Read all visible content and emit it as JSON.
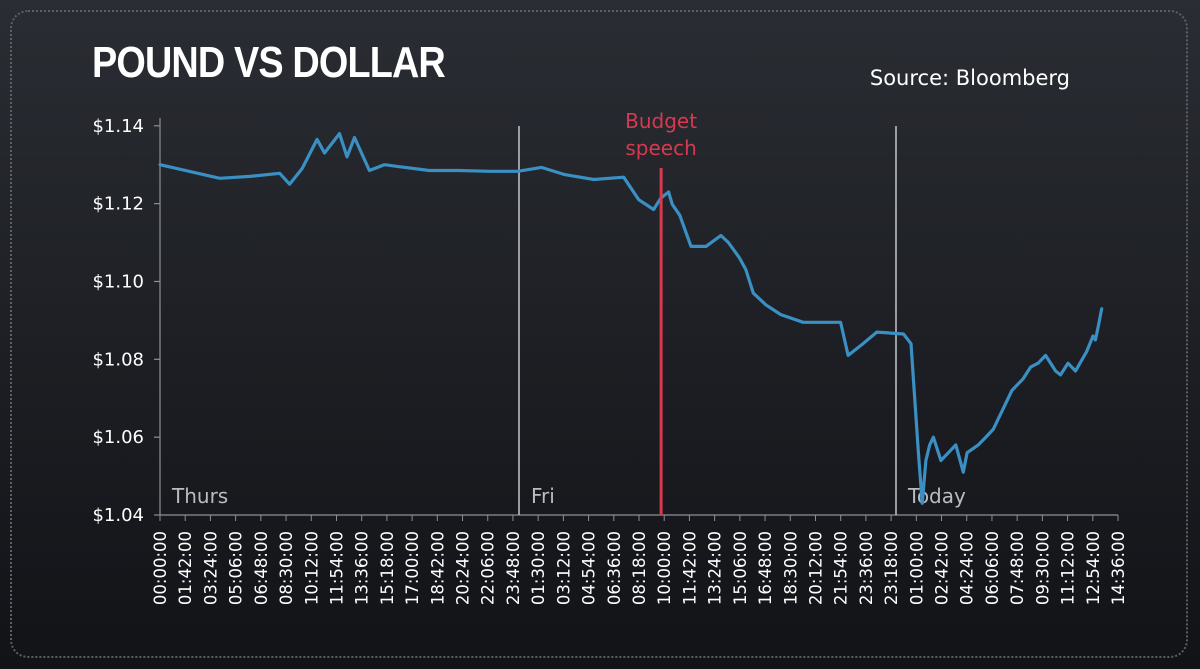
{
  "page": {
    "title": "POUND VS DOLLAR",
    "source": "Source: Bloomberg"
  },
  "chart_data": {
    "type": "line",
    "title": "POUND VS DOLLAR",
    "xlabel": "",
    "ylabel": "",
    "x": [
      "00:00:00",
      "04:00:00",
      "06:00:00",
      "08:00:00",
      "08:40:00",
      "09:30:00",
      "10:30:00",
      "11:00:00",
      "12:00:00",
      "12:30:00",
      "13:00:00",
      "14:00:00",
      "15:00:00",
      "16:00:00",
      "18:00:00",
      "20:00:00",
      "22:00:00",
      "23:55:00",
      "01:30:00",
      "03:00:00",
      "05:00:00",
      "07:00:00",
      "08:00:00",
      "09:00:00",
      "09:30:00",
      "10:00:00",
      "10:15:00",
      "10:45:00",
      "11:30:00",
      "12:30:00",
      "13:30:00",
      "14:00:00",
      "14:45:00",
      "15:10:00",
      "15:40:00",
      "16:30:00",
      "17:30:00",
      "19:00:00",
      "20:30:00",
      "21:30:00",
      "22:00:00",
      "23:00:00",
      "23:55:00",
      "00:30:00",
      "01:00:00",
      "01:30:00",
      "01:45:00",
      "02:00:00",
      "02:15:00",
      "02:30:00",
      "03:00:00",
      "03:30:00",
      "04:00:00",
      "04:30:00",
      "04:45:00",
      "05:30:00",
      "06:00:00",
      "06:30:00",
      "07:00:00",
      "07:45:00",
      "08:30:00",
      "09:00:00",
      "09:30:00",
      "10:00:00",
      "10:40:00",
      "11:00:00",
      "11:30:00",
      "12:00:00",
      "12:45:00",
      "13:10:00",
      "13:20:00",
      "13:30:00",
      "13:45:00"
    ],
    "days": [
      "Thurs",
      "Thurs",
      "Thurs",
      "Thurs",
      "Thurs",
      "Thurs",
      "Thurs",
      "Thurs",
      "Thurs",
      "Thurs",
      "Thurs",
      "Thurs",
      "Thurs",
      "Thurs",
      "Thurs",
      "Thurs",
      "Thurs",
      "Thurs",
      "Fri",
      "Fri",
      "Fri",
      "Fri",
      "Fri",
      "Fri",
      "Fri",
      "Fri",
      "Fri",
      "Fri",
      "Fri",
      "Fri",
      "Fri",
      "Fri",
      "Fri",
      "Fri",
      "Fri",
      "Fri",
      "Fri",
      "Fri",
      "Fri",
      "Fri",
      "Fri",
      "Fri",
      "Fri",
      "Today",
      "Today",
      "Today",
      "Today",
      "Today",
      "Today",
      "Today",
      "Today",
      "Today",
      "Today",
      "Today",
      "Today",
      "Today",
      "Today",
      "Today",
      "Today",
      "Today",
      "Today",
      "Today",
      "Today",
      "Today",
      "Today",
      "Today",
      "Today",
      "Today",
      "Today",
      "Today",
      "Today",
      "Today",
      "Today"
    ],
    "series": [
      {
        "values": [
          1.13,
          1.1265,
          1.127,
          1.1278,
          1.125,
          1.129,
          1.1365,
          1.133,
          1.138,
          1.132,
          1.137,
          1.1285,
          1.13,
          1.1295,
          1.1285,
          1.1285,
          1.1283,
          1.1283,
          1.1293,
          1.1275,
          1.1262,
          1.1268,
          1.121,
          1.1185,
          1.1215,
          1.123,
          1.1198,
          1.117,
          1.109,
          1.109,
          1.1118,
          1.11,
          1.106,
          1.103,
          1.097,
          1.094,
          1.0915,
          1.0895,
          1.0895,
          1.0895,
          1.081,
          1.084,
          1.087,
          1.0865,
          1.084,
          1.056,
          1.043,
          1.054,
          1.058,
          1.06,
          1.054,
          1.056,
          1.058,
          1.051,
          1.056,
          1.058,
          1.06,
          1.062,
          1.066,
          1.072,
          1.075,
          1.078,
          1.079,
          1.081,
          1.077,
          1.076,
          1.079,
          1.077,
          1.082,
          1.086,
          1.085,
          1.088,
          1.093
        ]
      }
    ],
    "x_tick_labels": [
      "00:00:00",
      "01:42:00",
      "03:24:00",
      "05:06:00",
      "06:48:00",
      "08:30:00",
      "10:12:00",
      "11:54:00",
      "13:36:00",
      "15:18:00",
      "17:00:00",
      "18:42:00",
      "20:24:00",
      "22:06:00",
      "23:48:00",
      "01:30:00",
      "03:12:00",
      "04:54:00",
      "06:36:00",
      "08:18:00",
      "10:00:00",
      "11:42:00",
      "13:24:00",
      "15:06:00",
      "16:48:00",
      "18:30:00",
      "20:12:00",
      "21:54:00",
      "23:36:00",
      "23:18:00",
      "01:00:00",
      "02:42:00",
      "04:24:00",
      "06:06:00",
      "07:48:00",
      "09:30:00",
      "11:12:00",
      "12:54:00",
      "14:36:00"
    ],
    "y_tick_labels": [
      "$1.04",
      "$1.06",
      "$1.08",
      "$1.10",
      "$1.12",
      "$1.14"
    ],
    "y_ticks": [
      1.04,
      1.06,
      1.08,
      1.1,
      1.12,
      1.14
    ],
    "ylim": [
      1.04,
      1.142
    ],
    "day_dividers": [
      {
        "label": "Thurs",
        "at": "00:00:00"
      },
      {
        "label": "Fri",
        "at": "00:00:00"
      },
      {
        "label": "Today",
        "at": "00:00:00"
      }
    ],
    "annotations": [
      {
        "label_lines": [
          "Budget",
          "speech"
        ],
        "day": "Fri",
        "at": "09:30:00",
        "color": "#d9394f"
      }
    ],
    "grid": false,
    "legend": "none",
    "colors": {
      "line": "#3a8fc3",
      "divider": "#b9bcc2",
      "annotation": "#d9394f",
      "text": "#ffffff"
    }
  }
}
